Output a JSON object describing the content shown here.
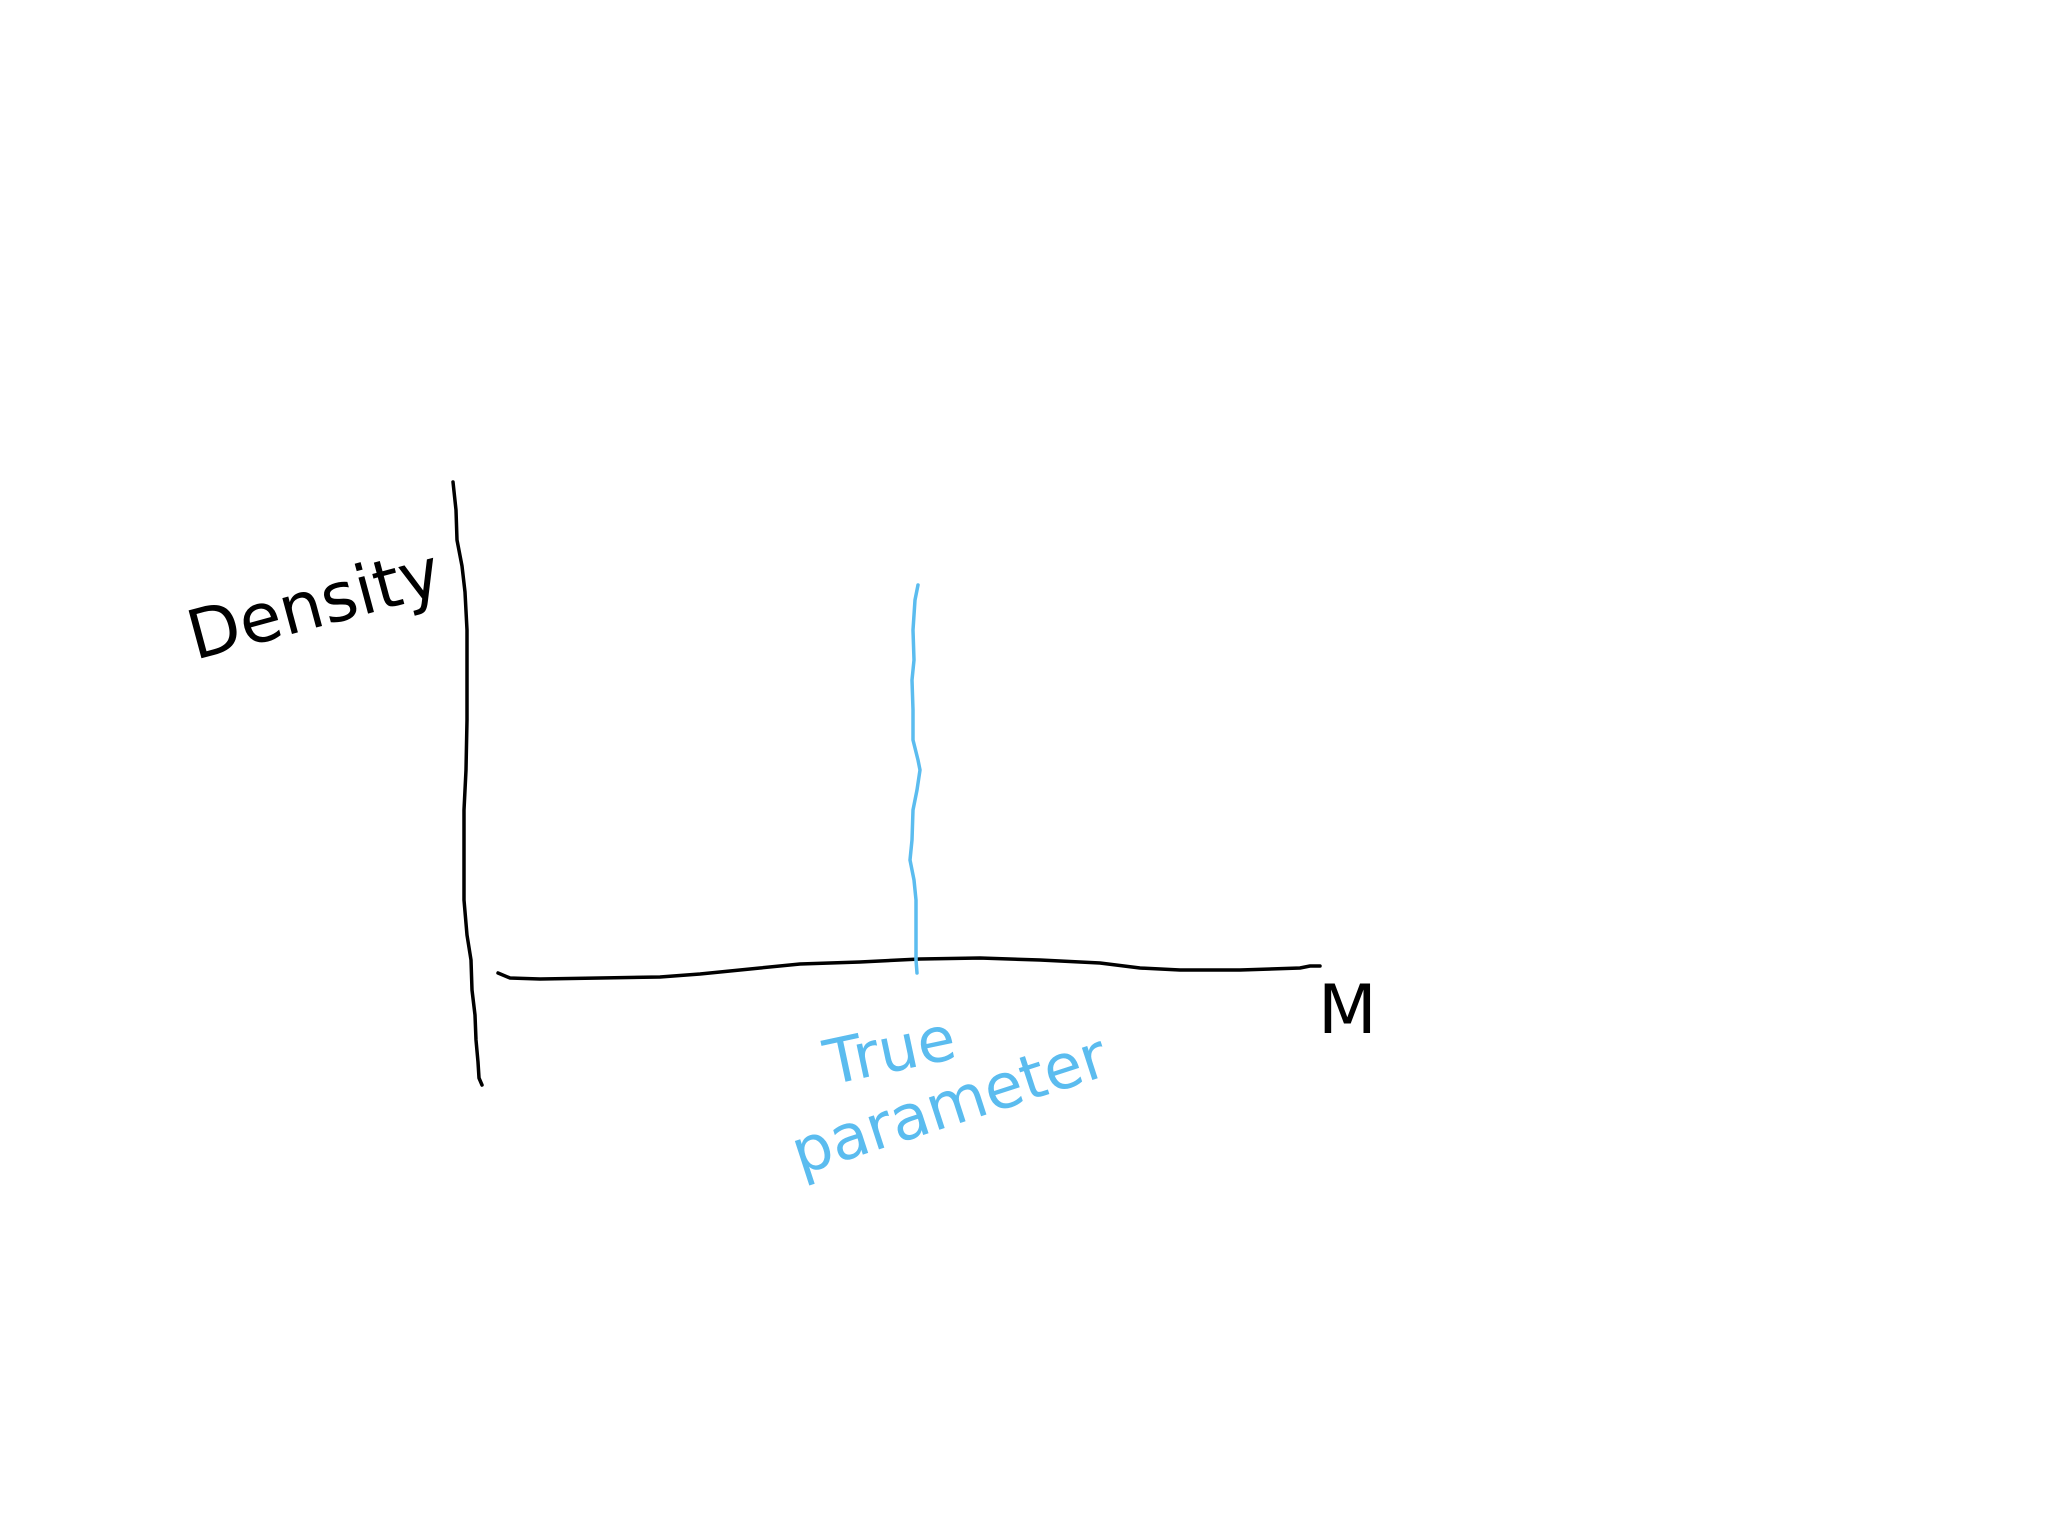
{
  "sketch": {
    "y_axis_label": "Density",
    "x_axis_label": "M",
    "marker_label_line1": "True",
    "marker_label_line2": "parameter"
  },
  "colors": {
    "background": "#ffffff",
    "ink": "#000000",
    "marker": "#5bbcef"
  }
}
